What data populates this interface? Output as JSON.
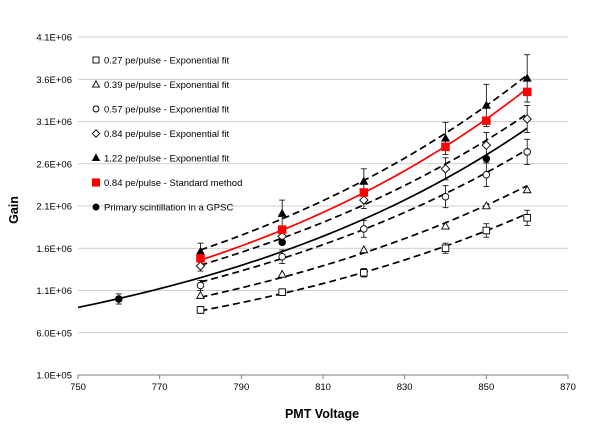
{
  "chart_data": {
    "type": "scatter",
    "title": "",
    "xlabel": "PMT Voltage",
    "ylabel": "Gain",
    "xlim": [
      750,
      870
    ],
    "ylim": [
      100000,
      4100000
    ],
    "x_ticks": [
      750,
      770,
      790,
      810,
      830,
      850,
      870
    ],
    "x_tick_labels": [
      "750",
      "770",
      "790",
      "810",
      "830",
      "850",
      "870"
    ],
    "y_ticks": [
      100000,
      600000,
      1100000,
      1600000,
      2100000,
      2600000,
      3100000,
      3600000,
      4100000
    ],
    "y_tick_labels": [
      "1.0E+05",
      "6.0E+05",
      "1.1E+06",
      "1.6E+06",
      "2.1E+06",
      "2.6E+06",
      "3.1E+06",
      "3.6E+06",
      "4.1E+06"
    ],
    "grid": "horizontal",
    "legend_position": "top-left",
    "series": [
      {
        "name": "0.27 pe/pulse - Exponential fit",
        "marker": "square-open",
        "color": "#000000",
        "fit": "dashed",
        "x": [
          780,
          800,
          820,
          840,
          850,
          860
        ],
        "y": [
          870000,
          1080000,
          1310000,
          1600000,
          1810000,
          1960000
        ],
        "err": [
          40000,
          40000,
          50000,
          60000,
          80000,
          90000
        ],
        "fit_x": [
          780,
          860
        ],
        "fit_y": [
          860000,
          2010000
        ]
      },
      {
        "name": "0.39 pe/pulse -  Exponential fit",
        "marker": "triangle-open",
        "color": "#000000",
        "fit": "dashed",
        "x": [
          780,
          800,
          820,
          840,
          850,
          860
        ],
        "y": [
          1040000,
          1290000,
          1580000,
          1860000,
          2100000,
          2290000
        ],
        "err": [
          0,
          0,
          0,
          0,
          0,
          0
        ],
        "fit_x": [
          780,
          860
        ],
        "fit_y": [
          1020000,
          2340000
        ]
      },
      {
        "name": "0.57 pe/pulse -  Exponential fit",
        "marker": "circle-open",
        "color": "#000000",
        "fit": "dashed",
        "x": [
          780,
          800,
          820,
          840,
          850,
          860
        ],
        "y": [
          1160000,
          1500000,
          1830000,
          2210000,
          2470000,
          2740000
        ],
        "err": [
          60000,
          80000,
          100000,
          130000,
          140000,
          150000
        ],
        "fit_x": [
          780,
          860
        ],
        "fit_y": [
          1200000,
          2770000
        ]
      },
      {
        "name": "0.84 pe/pulse -  Exponential fit",
        "marker": "diamond-open",
        "color": "#000000",
        "fit": "dashed",
        "x": [
          780,
          800,
          820,
          840,
          850,
          860
        ],
        "y": [
          1390000,
          1740000,
          2170000,
          2540000,
          2820000,
          3130000
        ],
        "err": [
          60000,
          80000,
          100000,
          130000,
          150000,
          160000
        ],
        "fit_x": [
          780,
          860
        ],
        "fit_y": [
          1400000,
          3190000
        ]
      },
      {
        "name": "1.22 pe/pulse -  Exponential fit",
        "marker": "triangle-filled",
        "color": "#000000",
        "fit": "dashed",
        "x": [
          780,
          800,
          820,
          840,
          850,
          860
        ],
        "y": [
          1560000,
          2010000,
          2390000,
          2900000,
          3290000,
          3610000
        ],
        "err": [
          100000,
          160000,
          150000,
          190000,
          250000,
          280000
        ],
        "fit_x": [
          780,
          860
        ],
        "fit_y": [
          1580000,
          3650000
        ]
      },
      {
        "name": "0.84 pe/pulse - Standard method",
        "marker": "square-filled",
        "color": "#ff0000",
        "fit": "solid",
        "x": [
          780,
          800,
          820,
          840,
          850,
          860
        ],
        "y": [
          1480000,
          1820000,
          2260000,
          2800000,
          3110000,
          3450000
        ],
        "err": [
          0,
          0,
          0,
          0,
          0,
          0
        ],
        "fit_x": [
          780,
          860
        ],
        "fit_y": [
          1460000,
          3490000
        ]
      },
      {
        "name": "Primary scintillation in a GPSC",
        "marker": "circle-filled",
        "color": "#000000",
        "fit": "solid",
        "x": [
          760,
          800,
          850
        ],
        "y": [
          1000000,
          1670000,
          2660000
        ],
        "err": [
          60000,
          0,
          0
        ],
        "fit_x": [
          750,
          860
        ],
        "fit_y": [
          900000,
          3020000
        ]
      }
    ]
  }
}
